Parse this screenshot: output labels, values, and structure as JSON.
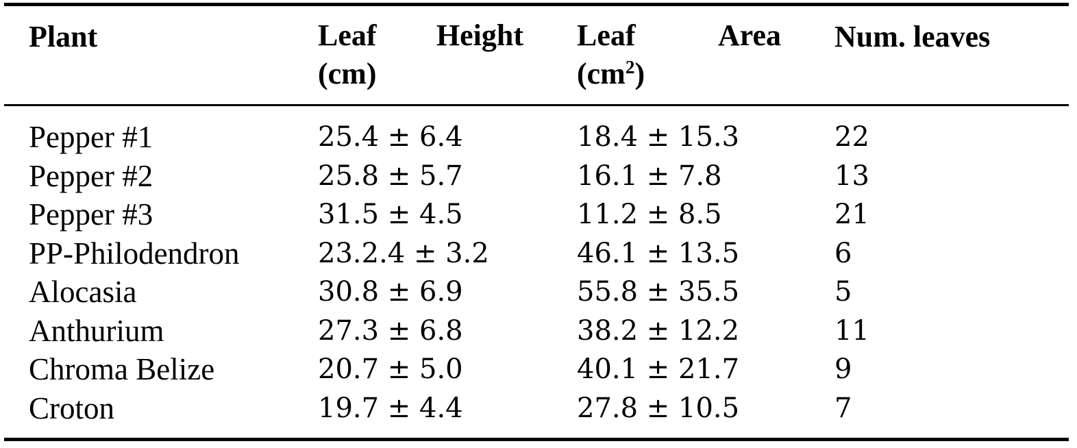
{
  "table": {
    "headers": {
      "plant": "Plant",
      "leaf_height": {
        "word1": "Leaf",
        "word2": "Height",
        "unit": "(cm)"
      },
      "leaf_area": {
        "word1": "Leaf",
        "word2": "Area",
        "unit_base": "(cm",
        "unit_exp": "2",
        "unit_close": ")"
      },
      "num_leaves": "Num. leaves"
    },
    "rows": [
      {
        "plant": "Pepper #1",
        "leaf_height": "25.4 ± 6.4",
        "leaf_area": "18.4 ± 15.3",
        "num_leaves": "22"
      },
      {
        "plant": "Pepper #2",
        "leaf_height": "25.8 ± 5.7",
        "leaf_area": "16.1 ± 7.8",
        "num_leaves": "13"
      },
      {
        "plant": "Pepper #3",
        "leaf_height": "31.5 ± 4.5",
        "leaf_area": "11.2 ± 8.5",
        "num_leaves": "21"
      },
      {
        "plant": "PP-Philodendron",
        "leaf_height": "23.2.4 ± 3.2",
        "leaf_area": "46.1 ± 13.5",
        "num_leaves": "6"
      },
      {
        "plant": "Alocasia",
        "leaf_height": "30.8 ± 6.9",
        "leaf_area": "55.8 ± 35.5",
        "num_leaves": "5"
      },
      {
        "plant": "Anthurium",
        "leaf_height": "27.3 ± 6.8",
        "leaf_area": "38.2 ± 12.2",
        "num_leaves": "11"
      },
      {
        "plant": "Chroma Belize",
        "leaf_height": "20.7 ± 5.0",
        "leaf_area": "40.1 ± 21.7",
        "num_leaves": "9"
      },
      {
        "plant": "Croton",
        "leaf_height": "19.7 ± 4.4",
        "leaf_area": "27.8 ± 10.5",
        "num_leaves": "7"
      }
    ]
  }
}
